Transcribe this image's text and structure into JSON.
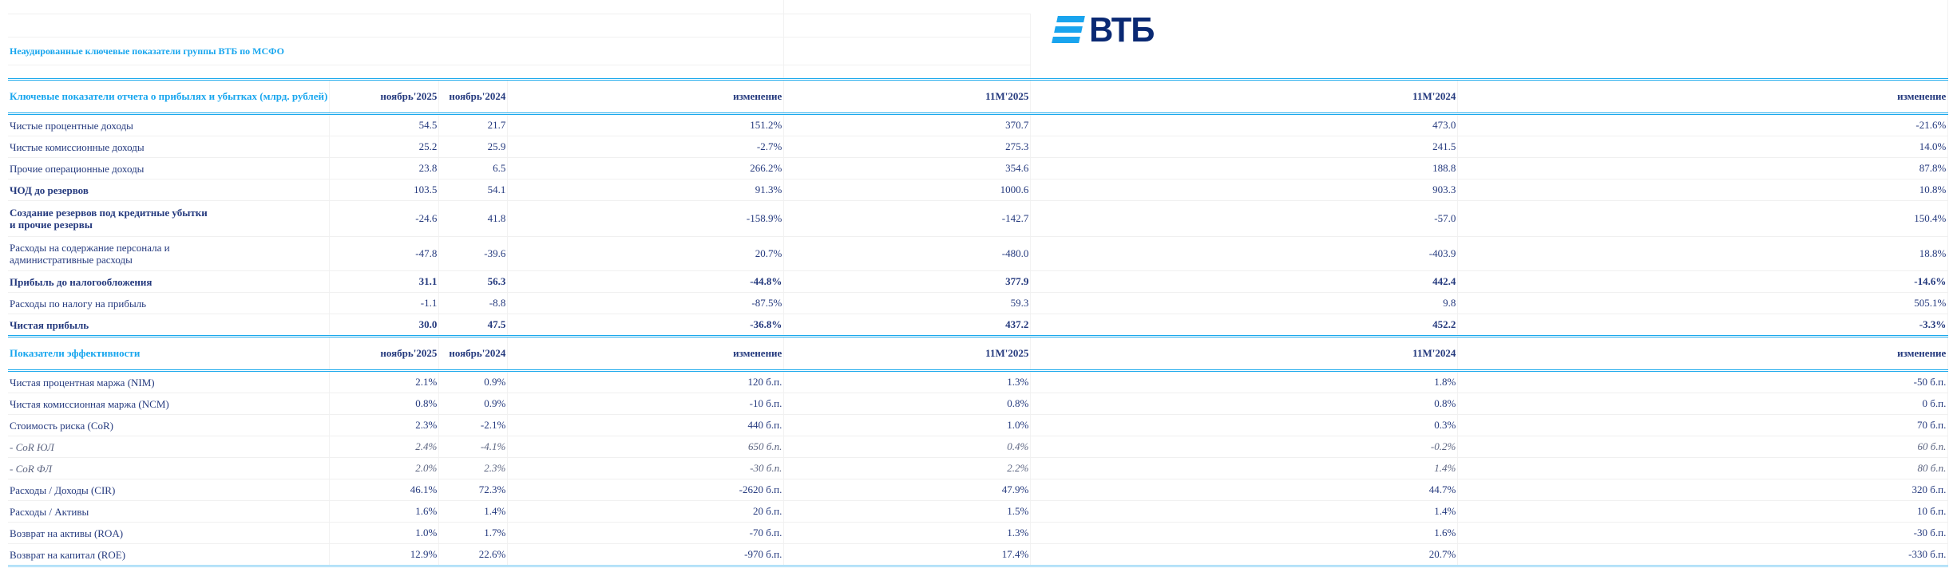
{
  "title": "Неаудированные ключевые показатели группы ВТБ по МСФО",
  "logo": {
    "text": "ВТБ",
    "brand_color": "#19a4ee",
    "text_color": "#0a2973"
  },
  "colors": {
    "accent": "#18a6ee",
    "text": "#253a7e"
  },
  "sections": [
    {
      "header": [
        "Ключевые показатели отчета о прибылях и убытках (млрд. рублей)",
        "ноябрь'2025",
        "ноябрь'2024",
        "изменение",
        "11M'2025",
        "11M'2024",
        "изменение"
      ],
      "rows": [
        {
          "style": "",
          "cells": [
            "Чистые процентные доходы",
            "54.5",
            "21.7",
            "151.2%",
            "370.7",
            "473.0",
            "-21.6%"
          ]
        },
        {
          "style": "",
          "cells": [
            "Чистые комиссионные доходы",
            "25.2",
            "25.9",
            "-2.7%",
            "275.3",
            "241.5",
            "14.0%"
          ]
        },
        {
          "style": "",
          "cells": [
            "Прочие операционные доходы",
            "23.8",
            "6.5",
            "266.2%",
            "354.6",
            "188.8",
            "87.8%"
          ]
        },
        {
          "style": "bold",
          "cells": [
            "ЧОД до резервов",
            "103.5",
            "54.1",
            "91.3%",
            "1000.6",
            "903.3",
            "10.8%"
          ]
        },
        {
          "style": "bold tall",
          "cells": [
            "Создание резервов под кредитные убытки\nи прочие резервы",
            "-24.6",
            "41.8",
            "-158.9%",
            "-142.7",
            "-57.0",
            "150.4%"
          ]
        },
        {
          "style": "tall2",
          "cells": [
            "Расходы на содержание персонала и\nадминистративные расходы",
            "-47.8",
            "-39.6",
            "20.7%",
            "-480.0",
            "-403.9",
            "18.8%"
          ]
        },
        {
          "style": "bold boldnum",
          "cells": [
            "Прибыль до налогообложения",
            "31.1",
            "56.3",
            "-44.8%",
            "377.9",
            "442.4",
            "-14.6%"
          ]
        },
        {
          "style": "",
          "cells": [
            "Расходы по налогу на прибыль",
            "-1.1",
            "-8.8",
            "-87.5%",
            "59.3",
            "9.8",
            "505.1%"
          ]
        },
        {
          "style": "bold boldnum",
          "cells": [
            "Чистая прибыль",
            "30.0",
            "47.5",
            "-36.8%",
            "437.2",
            "452.2",
            "-3.3%"
          ]
        }
      ]
    },
    {
      "header": [
        "Показатели эффективности",
        "ноябрь'2025",
        "ноябрь'2024",
        "изменение",
        "11M'2025",
        "11M'2024",
        "изменение"
      ],
      "rows": [
        {
          "style": "",
          "cells": [
            "Чистая процентная маржа (NIM)",
            "2.1%",
            "0.9%",
            "120 б.п.",
            "1.3%",
            "1.8%",
            "-50 б.п."
          ]
        },
        {
          "style": "",
          "cells": [
            "Чистая комиссионная маржа (NCM)",
            "0.8%",
            "0.9%",
            "-10 б.п.",
            "0.8%",
            "0.8%",
            "0 б.п."
          ]
        },
        {
          "style": "",
          "cells": [
            "Стоимость риска (CoR)",
            "2.3%",
            "-2.1%",
            "440 б.п.",
            "1.0%",
            "0.3%",
            "70 б.п."
          ]
        },
        {
          "style": "ital",
          "cells": [
            "-  CoR ЮЛ",
            "2.4%",
            "-4.1%",
            "650 б.п.",
            "0.4%",
            "-0.2%",
            "60 б.п."
          ]
        },
        {
          "style": "ital",
          "cells": [
            "-  CoR ФЛ",
            "2.0%",
            "2.3%",
            "-30 б.п.",
            "2.2%",
            "1.4%",
            "80 б.п."
          ]
        },
        {
          "style": "",
          "cells": [
            "Расходы / Доходы (CIR)",
            "46.1%",
            "72.3%",
            "-2620 б.п.",
            "47.9%",
            "44.7%",
            "320 б.п."
          ]
        },
        {
          "style": "",
          "cells": [
            "Расходы / Активы",
            "1.6%",
            "1.4%",
            "20 б.п.",
            "1.5%",
            "1.4%",
            "10 б.п."
          ]
        },
        {
          "style": "",
          "cells": [
            "Возврат на активы (ROA)",
            "1.0%",
            "1.7%",
            "-70 б.п.",
            "1.3%",
            "1.6%",
            "-30 б.п."
          ]
        },
        {
          "style": "last",
          "cells": [
            "Возврат на капитал (ROE)",
            "12.9%",
            "22.6%",
            "-970 б.п.",
            "17.4%",
            "20.7%",
            "-330 б.п."
          ]
        }
      ]
    }
  ]
}
